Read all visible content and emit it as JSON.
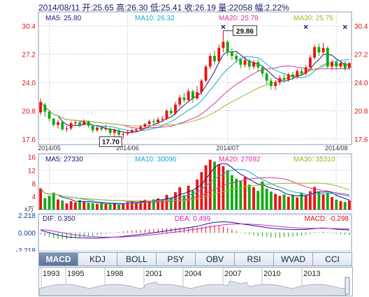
{
  "header": {
    "text": "2014/08/11 开:25.65 高:26.30 低:25.41 收:26.19 量:22058 幅:2.22%"
  },
  "price_panel": {
    "ma_labels": {
      "ma5": "MA5: 25.80",
      "ma10": "MA10: 26.32",
      "ma20": "MA20: 25.78",
      "ma30": "MA30: 25.75"
    },
    "y_ticks": [
      "30.4",
      "27.2",
      "24.0",
      "20.8",
      "17.6"
    ],
    "x_ticks": [
      "2014/05",
      "2014/06",
      "2014/07",
      "2014/08"
    ],
    "high_label": "29.86",
    "low_label": "17.70"
  },
  "volume_panel": {
    "ma_labels": {
      "ma5": "MA5: 27330",
      "ma10": "MA10: 30096",
      "ma20": "MA20: 27692",
      "ma30": "MA30: 35310"
    },
    "y_ticks": [
      "16",
      "12",
      "8",
      "4"
    ],
    "unit": "x万"
  },
  "macd_panel": {
    "dif_label": "DIF: 0.350",
    "dea_label": "DEA: 0.499",
    "macd_label": "MACD: -0.298",
    "y_ticks": [
      "2.218",
      "0.000",
      "-2.218"
    ]
  },
  "tabs": [
    "MACD",
    "KDJ",
    "BOLL",
    "PSY",
    "OBV",
    "RSI",
    "WVAD",
    "CCI"
  ],
  "active_tab": "MACD",
  "timeline_years": [
    "1993",
    "1995",
    "1998",
    "2001",
    "2004",
    "2007",
    "2010",
    "2013"
  ],
  "colors": {
    "up": "#ee1111",
    "down": "#11aa11",
    "ma5": "#1a1a80",
    "ma10": "#11aacc",
    "ma20": "#dd3399",
    "ma30": "#99bb22",
    "axis_text": "#dd1111",
    "frame": "#8899bb"
  },
  "chart_data": {
    "type": "candlestick",
    "y_range": [
      17.6,
      30.4
    ],
    "candles": [
      {
        "o": 20.6,
        "c": 21.8,
        "h": 22.2,
        "l": 20.3
      },
      {
        "o": 21.5,
        "c": 20.7,
        "h": 21.7,
        "l": 20.1
      },
      {
        "o": 20.7,
        "c": 19.9,
        "h": 20.9,
        "l": 19.6
      },
      {
        "o": 19.9,
        "c": 19.2,
        "h": 20.0,
        "l": 19.0
      },
      {
        "o": 19.2,
        "c": 19.5,
        "h": 19.8,
        "l": 18.8
      },
      {
        "o": 19.5,
        "c": 18.7,
        "h": 19.6,
        "l": 18.5
      },
      {
        "o": 18.7,
        "c": 18.8,
        "h": 19.1,
        "l": 18.4
      },
      {
        "o": 18.8,
        "c": 19.4,
        "h": 19.6,
        "l": 18.6
      },
      {
        "o": 19.4,
        "c": 19.5,
        "h": 19.7,
        "l": 19.1
      },
      {
        "o": 19.5,
        "c": 19.2,
        "h": 19.6,
        "l": 18.9
      },
      {
        "o": 19.2,
        "c": 19.6,
        "h": 19.8,
        "l": 19.1
      },
      {
        "o": 19.6,
        "c": 19.1,
        "h": 19.7,
        "l": 18.9
      },
      {
        "o": 19.1,
        "c": 18.6,
        "h": 19.2,
        "l": 18.3
      },
      {
        "o": 18.6,
        "c": 18.9,
        "h": 19.1,
        "l": 18.4
      },
      {
        "o": 18.9,
        "c": 18.7,
        "h": 19.0,
        "l": 18.5
      },
      {
        "o": 18.7,
        "c": 18.8,
        "h": 19.2,
        "l": 18.5
      },
      {
        "o": 18.8,
        "c": 18.3,
        "h": 18.9,
        "l": 18.0
      },
      {
        "o": 18.3,
        "c": 18.6,
        "h": 18.8,
        "l": 17.9
      },
      {
        "o": 18.6,
        "c": 18.1,
        "h": 18.7,
        "l": 17.8
      },
      {
        "o": 18.1,
        "c": 18.2,
        "h": 18.4,
        "l": 17.7
      },
      {
        "o": 18.2,
        "c": 18.4,
        "h": 18.6,
        "l": 18.0
      },
      {
        "o": 18.4,
        "c": 18.6,
        "h": 18.8,
        "l": 18.2
      },
      {
        "o": 18.6,
        "c": 18.7,
        "h": 18.9,
        "l": 18.4
      },
      {
        "o": 18.7,
        "c": 19.0,
        "h": 19.2,
        "l": 18.5
      },
      {
        "o": 19.0,
        "c": 19.3,
        "h": 19.4,
        "l": 18.8
      },
      {
        "o": 19.3,
        "c": 19.6,
        "h": 19.8,
        "l": 19.1
      },
      {
        "o": 19.6,
        "c": 19.5,
        "h": 19.9,
        "l": 19.2
      },
      {
        "o": 19.5,
        "c": 19.8,
        "h": 20.1,
        "l": 19.3
      },
      {
        "o": 19.8,
        "c": 19.9,
        "h": 20.2,
        "l": 19.5
      },
      {
        "o": 19.9,
        "c": 20.8,
        "h": 21.0,
        "l": 19.7
      },
      {
        "o": 20.8,
        "c": 20.5,
        "h": 21.2,
        "l": 20.3
      },
      {
        "o": 20.5,
        "c": 21.5,
        "h": 21.8,
        "l": 20.3
      },
      {
        "o": 21.5,
        "c": 22.3,
        "h": 22.6,
        "l": 21.2
      },
      {
        "o": 22.3,
        "c": 22.0,
        "h": 22.8,
        "l": 21.7
      },
      {
        "o": 22.0,
        "c": 23.0,
        "h": 23.3,
        "l": 21.8
      },
      {
        "o": 23.0,
        "c": 22.2,
        "h": 23.2,
        "l": 21.7
      },
      {
        "o": 22.2,
        "c": 22.9,
        "h": 23.6,
        "l": 22.0
      },
      {
        "o": 22.9,
        "c": 24.2,
        "h": 24.4,
        "l": 22.6
      },
      {
        "o": 24.2,
        "c": 25.8,
        "h": 26.0,
        "l": 24.0
      },
      {
        "o": 25.8,
        "c": 27.0,
        "h": 27.3,
        "l": 25.5
      },
      {
        "o": 27.0,
        "c": 26.4,
        "h": 27.6,
        "l": 26.0
      },
      {
        "o": 26.4,
        "c": 27.9,
        "h": 28.3,
        "l": 26.1
      },
      {
        "o": 27.9,
        "c": 28.6,
        "h": 29.86,
        "l": 27.4
      },
      {
        "o": 28.6,
        "c": 27.4,
        "h": 28.8,
        "l": 27.0
      },
      {
        "o": 27.4,
        "c": 27.0,
        "h": 27.9,
        "l": 26.5
      },
      {
        "o": 27.0,
        "c": 26.6,
        "h": 27.3,
        "l": 26.2
      },
      {
        "o": 26.6,
        "c": 26.0,
        "h": 26.8,
        "l": 25.6
      },
      {
        "o": 26.0,
        "c": 26.5,
        "h": 26.9,
        "l": 25.7
      },
      {
        "o": 26.5,
        "c": 25.8,
        "h": 26.7,
        "l": 25.4
      },
      {
        "o": 25.8,
        "c": 26.3,
        "h": 26.6,
        "l": 25.5
      },
      {
        "o": 26.3,
        "c": 25.7,
        "h": 26.6,
        "l": 25.3
      },
      {
        "o": 25.7,
        "c": 25.0,
        "h": 25.9,
        "l": 24.6
      },
      {
        "o": 25.0,
        "c": 24.2,
        "h": 25.2,
        "l": 23.8
      },
      {
        "o": 24.2,
        "c": 23.6,
        "h": 24.5,
        "l": 23.2
      },
      {
        "o": 23.6,
        "c": 24.0,
        "h": 24.3,
        "l": 23.2
      },
      {
        "o": 24.0,
        "c": 24.5,
        "h": 24.8,
        "l": 23.7
      },
      {
        "o": 24.5,
        "c": 24.3,
        "h": 24.9,
        "l": 24.0
      },
      {
        "o": 24.3,
        "c": 24.9,
        "h": 25.1,
        "l": 24.1
      },
      {
        "o": 24.9,
        "c": 24.6,
        "h": 25.2,
        "l": 24.3
      },
      {
        "o": 24.6,
        "c": 25.3,
        "h": 25.5,
        "l": 24.4
      },
      {
        "o": 25.3,
        "c": 25.0,
        "h": 25.6,
        "l": 24.7
      },
      {
        "o": 25.0,
        "c": 25.7,
        "h": 26.0,
        "l": 24.8
      },
      {
        "o": 25.7,
        "c": 26.8,
        "h": 27.1,
        "l": 25.5
      },
      {
        "o": 26.8,
        "c": 28.0,
        "h": 28.3,
        "l": 26.6
      },
      {
        "o": 28.0,
        "c": 27.4,
        "h": 28.4,
        "l": 27.0
      },
      {
        "o": 27.4,
        "c": 27.9,
        "h": 28.5,
        "l": 27.1
      },
      {
        "o": 27.9,
        "c": 25.8,
        "h": 28.1,
        "l": 25.5
      },
      {
        "o": 25.8,
        "c": 26.3,
        "h": 26.6,
        "l": 25.4
      },
      {
        "o": 26.3,
        "c": 25.8,
        "h": 26.5,
        "l": 25.4
      },
      {
        "o": 25.8,
        "c": 26.2,
        "h": 26.4,
        "l": 25.6
      },
      {
        "o": 26.2,
        "c": 25.6,
        "h": 26.4,
        "l": 25.3
      },
      {
        "o": 25.65,
        "c": 26.19,
        "h": 26.3,
        "l": 25.41
      }
    ],
    "volumes": [
      6.5,
      3.5,
      4.2,
      5.2,
      3.1,
      2.8,
      1.9,
      2.6,
      2.2,
      2.9,
      2.4,
      2.1,
      2.0,
      1.8,
      1.9,
      1.7,
      1.6,
      1.9,
      1.5,
      2.0,
      2.3,
      2.6,
      2.1,
      2.8,
      3.0,
      2.7,
      3.1,
      3.4,
      3.0,
      4.5,
      3.6,
      5.3,
      6.8,
      4.4,
      7.3,
      5.8,
      9.2,
      11.4,
      13.5,
      15.2,
      14.6,
      13.8,
      13.2,
      12.0,
      10.5,
      9.4,
      8.7,
      9.9,
      7.6,
      6.8,
      5.7,
      8.6,
      6.4,
      5.5,
      4.8,
      4.2,
      4.6,
      3.9,
      4.4,
      3.7,
      5.1,
      4.3,
      5.6,
      6.9,
      5.3,
      4.6,
      5.2,
      3.8,
      3.0,
      2.6,
      2.3,
      2.8
    ],
    "dif": [
      0.3,
      0.15,
      0.0,
      -0.15,
      -0.3,
      -0.42,
      -0.52,
      -0.58,
      -0.62,
      -0.65,
      -0.66,
      -0.67,
      -0.68,
      -0.68,
      -0.66,
      -0.63,
      -0.6,
      -0.57,
      -0.52,
      -0.46,
      -0.4,
      -0.34,
      -0.28,
      -0.22,
      -0.15,
      -0.08,
      0.0,
      0.08,
      0.16,
      0.24,
      0.32,
      0.4,
      0.48,
      0.56,
      0.64,
      0.72,
      0.82,
      0.95,
      1.1,
      1.22,
      1.3,
      1.36,
      1.38,
      1.36,
      1.3,
      1.22,
      1.14,
      1.06,
      0.98,
      0.9,
      0.82,
      0.74,
      0.66,
      0.58,
      0.52,
      0.48,
      0.45,
      0.42,
      0.4,
      0.39,
      0.4,
      0.42,
      0.46,
      0.52,
      0.58,
      0.6,
      0.56,
      0.5,
      0.45,
      0.4,
      0.37,
      0.35
    ],
    "dea": [
      0.4,
      0.35,
      0.28,
      0.2,
      0.1,
      0.0,
      -0.1,
      -0.2,
      -0.28,
      -0.35,
      -0.4,
      -0.45,
      -0.49,
      -0.52,
      -0.55,
      -0.56,
      -0.57,
      -0.57,
      -0.56,
      -0.54,
      -0.51,
      -0.48,
      -0.44,
      -0.4,
      -0.35,
      -0.3,
      -0.24,
      -0.18,
      -0.12,
      -0.05,
      0.02,
      0.09,
      0.16,
      0.24,
      0.32,
      0.4,
      0.48,
      0.57,
      0.66,
      0.75,
      0.84,
      0.92,
      0.99,
      1.05,
      1.09,
      1.11,
      1.12,
      1.11,
      1.09,
      1.06,
      1.02,
      0.98,
      0.93,
      0.88,
      0.83,
      0.78,
      0.73,
      0.69,
      0.65,
      0.61,
      0.58,
      0.56,
      0.55,
      0.55,
      0.55,
      0.55,
      0.54,
      0.53,
      0.52,
      0.51,
      0.5,
      0.499
    ]
  }
}
